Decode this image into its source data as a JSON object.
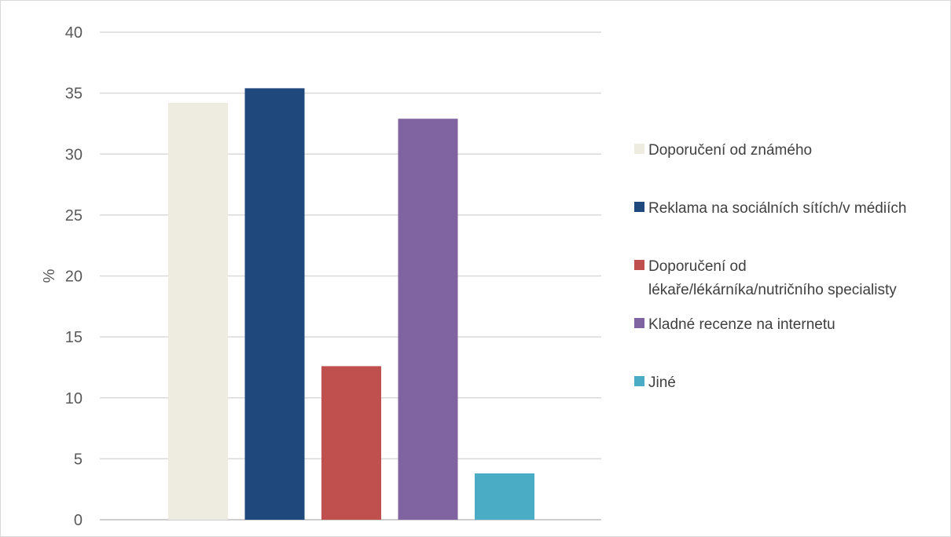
{
  "chart_data": {
    "type": "bar",
    "title": "",
    "xlabel": "",
    "ylabel": "%",
    "ylim": [
      0,
      40
    ],
    "yticks": [
      0,
      5,
      10,
      15,
      20,
      25,
      30,
      35,
      40
    ],
    "grid": true,
    "legend_position": "right",
    "series": [
      {
        "name": "Doporučení od známého",
        "value": 34.2,
        "color": "#EEECE1"
      },
      {
        "name": "Reklama na sociálních sítích/v médiích",
        "value": 35.4,
        "color": "#1F497D"
      },
      {
        "name": "Doporučení od lékaře/lékárníka/nutričního specialisty",
        "value": 12.6,
        "color": "#C0504D"
      },
      {
        "name": "Kladné recenze na internetu",
        "value": 32.9,
        "color": "#8064A2"
      },
      {
        "name": "Jiné",
        "value": 3.8,
        "color": "#4BACC6"
      }
    ]
  }
}
